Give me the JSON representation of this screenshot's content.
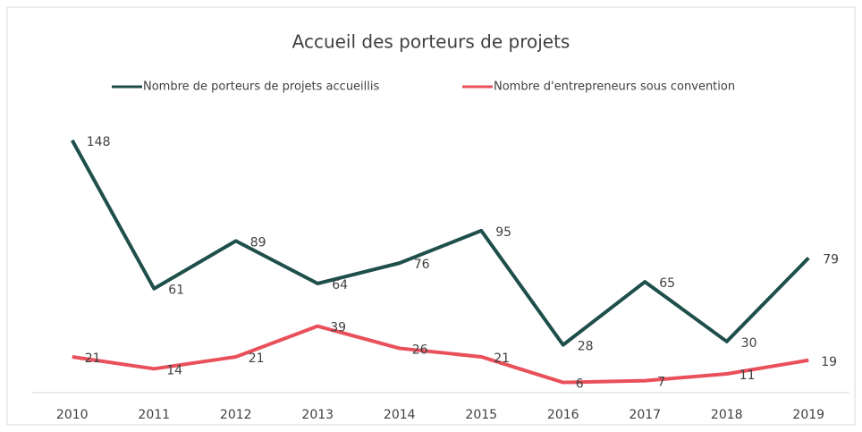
{
  "chart_data": {
    "type": "line",
    "title": "Accueil des porteurs de projets",
    "categories": [
      "2010",
      "2011",
      "2012",
      "2013",
      "2014",
      "2015",
      "2016",
      "2017",
      "2018",
      "2019"
    ],
    "series": [
      {
        "name": "Nombre de porteurs de projets accueillis",
        "color": "#1e4f4b",
        "values": [
          148,
          61,
          89,
          64,
          76,
          95,
          28,
          65,
          30,
          79
        ]
      },
      {
        "name": "Nombre d'entrepreneurs sous convention",
        "color": "#e9505a",
        "values": [
          21,
          14,
          21,
          39,
          26,
          21,
          6,
          7,
          11,
          19
        ]
      }
    ],
    "ylim": [
      0,
      160
    ]
  }
}
